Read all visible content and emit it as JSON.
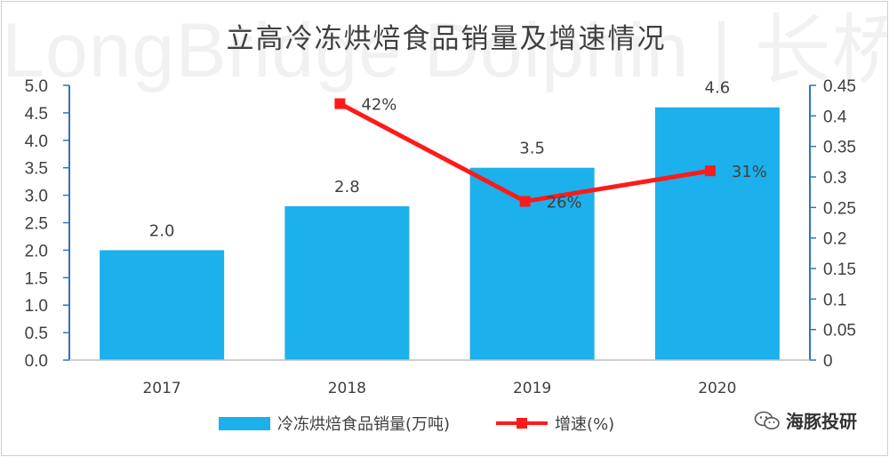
{
  "watermark_text": "LongBridge Dolphin | 长桥海豚投研",
  "brand": {
    "icon": "wechat-icon",
    "label": "海豚投研"
  },
  "colors": {
    "bar": "#1CB0EC",
    "line": "#FF1A1A",
    "axis": "#2E75B6",
    "text": "#404040"
  },
  "chart_data": {
    "type": "bar",
    "title": "立高冷冻烘焙食品销量及增速情况",
    "categories": [
      "2017",
      "2018",
      "2019",
      "2020"
    ],
    "series": [
      {
        "name": "冷冻烘焙食品销量(万吨)",
        "type": "bar",
        "axis": "left",
        "values": [
          2.0,
          2.8,
          3.5,
          4.6
        ],
        "labels": [
          "2.0",
          "2.8",
          "3.5",
          "4.6"
        ]
      },
      {
        "name": "增速(%)",
        "type": "line",
        "axis": "right",
        "values": [
          null,
          0.42,
          0.26,
          0.31
        ],
        "labels": [
          "",
          "42%",
          "26%",
          "31%"
        ]
      }
    ],
    "y_left": {
      "min": 0,
      "max": 5.0,
      "ticks": [
        "0.0",
        "0.5",
        "1.0",
        "1.5",
        "2.0",
        "2.5",
        "3.0",
        "3.5",
        "4.0",
        "4.5",
        "5.0"
      ]
    },
    "y_right": {
      "min": 0,
      "max": 0.45,
      "ticks": [
        "0",
        "0.05",
        "0.1",
        "0.15",
        "0.2",
        "0.25",
        "0.3",
        "0.35",
        "0.4",
        "0.45"
      ]
    },
    "grid": false,
    "legend_position": "bottom"
  }
}
